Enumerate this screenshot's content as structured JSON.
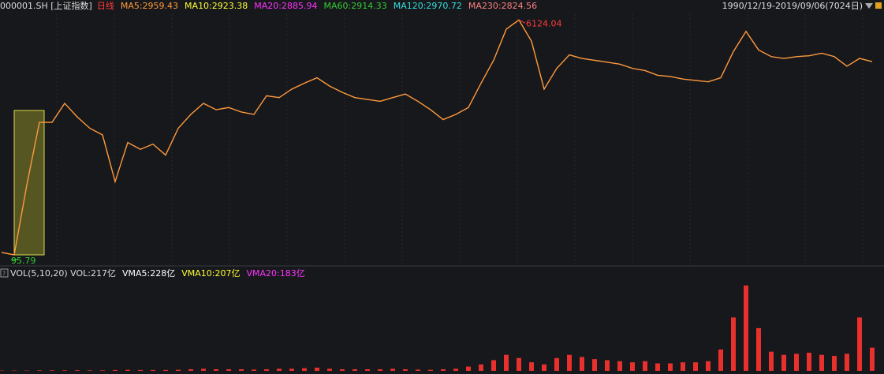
{
  "header": {
    "code": "000001.SH [上证指数]",
    "legend": [
      {
        "text": "日线",
        "color": "#ff3b3b"
      },
      {
        "text": "MA5:2959.43",
        "color": "#ff9a3c"
      },
      {
        "text": "MA10:2923.38",
        "color": "#ffff33"
      },
      {
        "text": "MA20:2885.94",
        "color": "#ff33ff"
      },
      {
        "text": "MA60:2914.33",
        "color": "#33cc33"
      },
      {
        "text": "MA120:2970.72",
        "color": "#33e0e0"
      },
      {
        "text": "MA230:2824.56",
        "color": "#ff8080"
      }
    ],
    "range": "1990/12/19-2019/09/06(7024日)"
  },
  "volume_header": {
    "legend": [
      {
        "text": "VOL(5,10,20) VOL:217亿",
        "color": "#dddddd"
      },
      {
        "text": "VMA5:228亿",
        "color": "#ffffff"
      },
      {
        "text": "VMA10:207亿",
        "color": "#ffff33"
      },
      {
        "text": "VMA20:183亿",
        "color": "#ff33ff"
      }
    ]
  },
  "chart_data": [
    {
      "type": "line",
      "log": true,
      "extremes": true,
      "color": "#ff9a3c",
      "ylim": [
        81,
        6780
      ],
      "categories": [
        null,
        null,
        null,
        null,
        null,
        null,
        null,
        null,
        null,
        null,
        null,
        null,
        null,
        null,
        null,
        null,
        null,
        null,
        null,
        null,
        null,
        null,
        null,
        null,
        null,
        null,
        null,
        null,
        null,
        null,
        null,
        null,
        null,
        null,
        null,
        null,
        null,
        null,
        null,
        null,
        null,
        null,
        null,
        null,
        null,
        null,
        null,
        null,
        null,
        null,
        null,
        null,
        null,
        null,
        null,
        null,
        null,
        null,
        null,
        null,
        null,
        null,
        null,
        null,
        null,
        null,
        null,
        null,
        null,
        null
      ],
      "series": [
        {
          "values": [
            100,
            95.79,
            330,
            1000,
            1000,
            1400,
            1100,
            900,
            800,
            350,
            700,
            620,
            680,
            560,
            900,
            1150,
            1400,
            1250,
            1300,
            1200,
            1150,
            1600,
            1550,
            1800,
            2000,
            2200,
            1900,
            1700,
            1550,
            1500,
            1450,
            1550,
            1650,
            1450,
            1250,
            1050,
            1150,
            1300,
            2000,
            3000,
            5200,
            6124.04,
            4200,
            1800,
            2600,
            3300,
            3100,
            3000,
            2900,
            2800,
            2600,
            2500,
            2300,
            2250,
            2150,
            2100,
            2050,
            2200,
            3500,
            5000,
            3600,
            3200,
            3100,
            3200,
            3250,
            3400,
            3200,
            2700,
            3100,
            2930
          ]
        }
      ]
    },
    {
      "type": "bar",
      "color": "#e8302c",
      "ylim": [
        0,
        850
      ],
      "categories": [
        null,
        null,
        null,
        null,
        null,
        null,
        null,
        null,
        null,
        null,
        null,
        null,
        null,
        null,
        null,
        null,
        null,
        null,
        null,
        null,
        null,
        null,
        null,
        null,
        null,
        null,
        null,
        null,
        null,
        null,
        null,
        null,
        null,
        null,
        null,
        null,
        null,
        null,
        null,
        null,
        null,
        null,
        null,
        null,
        null,
        null,
        null,
        null,
        null,
        null,
        null,
        null,
        null,
        null,
        null,
        null,
        null,
        null,
        null,
        null,
        null,
        null,
        null,
        null,
        null,
        null,
        null,
        null,
        null,
        null
      ],
      "series": [
        {
          "values": [
            3,
            3,
            3,
            5,
            5,
            5,
            6,
            5,
            5,
            8,
            10,
            8,
            8,
            8,
            10,
            15,
            20,
            15,
            15,
            15,
            12,
            15,
            20,
            20,
            25,
            30,
            20,
            15,
            15,
            15,
            15,
            20,
            15,
            12,
            10,
            15,
            20,
            40,
            60,
            100,
            150,
            120,
            80,
            60,
            120,
            150,
            130,
            110,
            100,
            90,
            80,
            90,
            70,
            70,
            80,
            80,
            90,
            200,
            500,
            800,
            400,
            180,
            150,
            160,
            170,
            150,
            140,
            160,
            500,
            217
          ]
        }
      ]
    }
  ]
}
